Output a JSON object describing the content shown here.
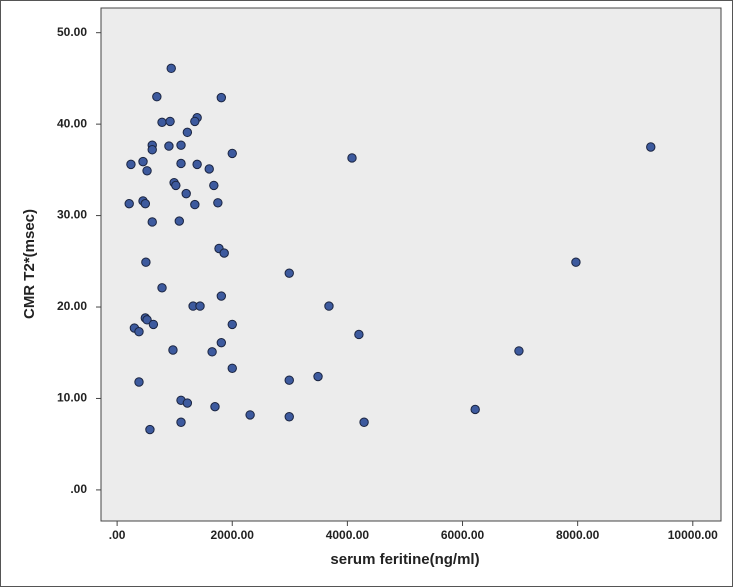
{
  "chart_data": {
    "type": "scatter",
    "xlabel": "serum feritine(ng/ml)",
    "ylabel": "CMR T2*(msec)",
    "color": "#3d5a9e",
    "x": [
      940,
      690,
      1810,
      780,
      920,
      1390,
      1350,
      1220,
      610,
      610,
      900,
      1110,
      2000,
      240,
      450,
      1110,
      1390,
      1600,
      520,
      990,
      1020,
      1680,
      1200,
      210,
      450,
      490,
      1750,
      1350,
      610,
      1080,
      1770,
      1860,
      500,
      780,
      1810,
      1320,
      1440,
      300,
      380,
      490,
      520,
      630,
      2000,
      1810,
      1650,
      970,
      2000,
      380,
      1110,
      1220,
      1700,
      2310,
      1110,
      570,
      2990,
      2990,
      2990,
      3490,
      3680,
      4080,
      4200,
      4290,
      6220,
      6980,
      7970,
      9270
    ],
    "values": [
      46.1,
      43.0,
      42.9,
      40.2,
      40.3,
      40.7,
      40.3,
      39.1,
      37.7,
      37.2,
      37.6,
      37.7,
      36.8,
      35.6,
      35.9,
      35.7,
      35.6,
      35.1,
      34.9,
      33.6,
      33.3,
      33.3,
      32.4,
      31.3,
      31.6,
      31.3,
      31.4,
      31.2,
      29.3,
      29.4,
      26.4,
      25.9,
      24.9,
      22.1,
      21.2,
      20.1,
      20.1,
      17.7,
      17.3,
      18.8,
      18.6,
      18.1,
      18.1,
      16.1,
      15.1,
      15.3,
      13.3,
      11.8,
      9.8,
      9.5,
      9.1,
      8.2,
      7.4,
      6.6,
      23.7,
      12.0,
      8.0,
      12.4,
      20.1,
      36.3,
      17.0,
      7.4,
      8.8,
      15.2,
      24.9,
      37.5
    ],
    "xlim": [
      -280,
      10490
    ],
    "ylim": [
      -3.4,
      52.7
    ],
    "xticks": [
      {
        "value": 0,
        "label": ".00"
      },
      {
        "value": 2000,
        "label": "2000.00"
      },
      {
        "value": 4000,
        "label": "4000.00"
      },
      {
        "value": 6000,
        "label": "6000.00"
      },
      {
        "value": 8000,
        "label": "8000.00"
      },
      {
        "value": 10000,
        "label": "10000.00"
      }
    ],
    "yticks": [
      {
        "value": 0,
        "label": ".00"
      },
      {
        "value": 10,
        "label": "10.00"
      },
      {
        "value": 20,
        "label": "20.00"
      },
      {
        "value": 30,
        "label": "30.00"
      },
      {
        "value": 40,
        "label": "40.00"
      },
      {
        "value": 50,
        "label": "50.00"
      }
    ]
  }
}
